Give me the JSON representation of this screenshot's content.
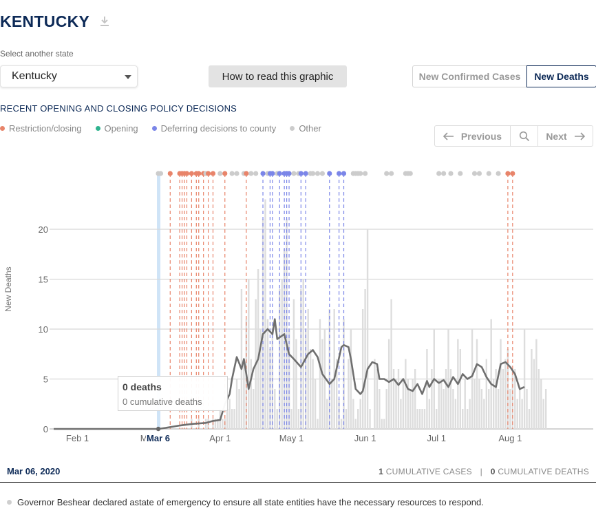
{
  "header": {
    "state_title": "KENTUCKY",
    "download_icon": "download-icon"
  },
  "selector": {
    "label": "Select another state",
    "value": "Kentucky"
  },
  "howto_label": "How to read this graphic",
  "toggle": {
    "cases_label": "New Confirmed Cases",
    "deaths_label": "New Deaths",
    "active": "deaths"
  },
  "policy": {
    "title": "RECENT OPENING AND CLOSING POLICY DECISIONS",
    "legend": [
      {
        "label": "Restriction/closing",
        "color": "#e8846a"
      },
      {
        "label": "Opening",
        "color": "#2fb38f"
      },
      {
        "label": "Deferring decisions to county",
        "color": "#7b86e8"
      },
      {
        "label": "Other",
        "color": "#cccccc"
      }
    ]
  },
  "pager": {
    "prev_label": "Previous",
    "next_label": "Next"
  },
  "tooltip": {
    "main": "0 deaths",
    "sub": "0 cumulative deaths"
  },
  "footer": {
    "date": "Mar 06, 2020",
    "cum_cases_num": "1",
    "cum_cases_label": "CUMULATIVE CASES",
    "cum_deaths_num": "0",
    "cum_deaths_label": "CUMULATIVE DEATHS"
  },
  "event_text": "Governor Beshear declared astate of emergency to ensure all state entities have the necessary resources to respond.",
  "chart_data": {
    "type": "bar",
    "ylabel": "New Deaths",
    "ylim": [
      0,
      20
    ],
    "yticks": [
      0,
      5,
      10,
      15,
      20
    ],
    "start_date": "2020-01-22",
    "end_date": "2020-08-10",
    "xticks": [
      {
        "label": "Feb 1",
        "day": 10
      },
      {
        "label": "Ma",
        "day": 39
      },
      {
        "label": "Apr 1",
        "day": 70
      },
      {
        "label": "May 1",
        "day": 100
      },
      {
        "label": "Jun 1",
        "day": 131
      },
      {
        "label": "Jul 1",
        "day": 161
      },
      {
        "label": "Aug 1",
        "day": 192
      }
    ],
    "highlight": {
      "label": "Mar 6",
      "day": 44
    },
    "bars_start_day": 44,
    "daily_deaths": [
      0,
      0,
      0,
      0,
      0,
      0,
      0,
      0,
      0,
      0,
      0,
      0,
      0,
      0,
      1,
      0,
      0,
      1,
      0,
      0,
      1,
      1,
      0,
      1,
      1,
      1,
      2,
      1,
      1,
      2,
      3,
      2,
      2,
      5,
      4,
      14,
      7,
      11,
      15,
      7,
      4,
      13,
      16,
      10,
      21,
      23,
      11,
      8,
      10,
      4,
      2,
      14,
      15,
      18,
      21,
      10,
      2,
      13,
      9,
      2,
      14,
      15,
      10,
      12,
      8,
      7,
      5,
      1,
      11,
      9,
      10,
      3,
      12,
      5,
      12,
      7,
      3,
      1,
      11,
      2,
      7,
      10,
      3,
      1,
      2,
      3,
      12,
      14,
      20,
      2,
      0,
      7,
      6,
      4,
      1,
      1,
      4,
      9,
      13,
      6,
      5,
      6,
      3,
      5,
      7,
      5,
      4,
      5,
      6,
      2,
      2,
      2,
      2,
      8,
      3,
      6,
      10,
      2,
      5,
      5,
      4,
      6,
      10,
      6,
      4,
      3,
      9,
      8,
      2,
      5,
      2,
      3,
      10,
      5,
      9,
      5,
      4,
      3,
      7,
      4,
      11,
      5,
      6,
      4,
      9,
      6,
      7,
      8,
      4,
      6,
      6,
      3,
      4,
      3,
      10,
      4,
      2,
      8,
      7,
      9,
      6,
      5,
      3,
      4
    ],
    "avg_points": [
      [
        0,
        0
      ],
      [
        44,
        0
      ],
      [
        47,
        0.1
      ],
      [
        52,
        0.3
      ],
      [
        58,
        0.5
      ],
      [
        64,
        0.6
      ],
      [
        67,
        0.8
      ],
      [
        70,
        0.9
      ],
      [
        72,
        2.5
      ],
      [
        74,
        3.5
      ],
      [
        75,
        5
      ],
      [
        77,
        7.2
      ],
      [
        79,
        6
      ],
      [
        80,
        7
      ],
      [
        82,
        4
      ],
      [
        84,
        6
      ],
      [
        86,
        7
      ],
      [
        88,
        9.5
      ],
      [
        90,
        10
      ],
      [
        92,
        9.5
      ],
      [
        93,
        11
      ],
      [
        94,
        9
      ],
      [
        97,
        9.5
      ],
      [
        99,
        7.5
      ],
      [
        101,
        7
      ],
      [
        104,
        6.2
      ],
      [
        107,
        7.5
      ],
      [
        109,
        7.9
      ],
      [
        111,
        7.2
      ],
      [
        113,
        5.5
      ],
      [
        116,
        4.5
      ],
      [
        118,
        5
      ],
      [
        121,
        8.2
      ],
      [
        122,
        8.4
      ],
      [
        124,
        8.2
      ],
      [
        125,
        7
      ],
      [
        127,
        4
      ],
      [
        129,
        3.5
      ],
      [
        130,
        3.8
      ],
      [
        132,
        6
      ],
      [
        134,
        6.7
      ],
      [
        136,
        6.5
      ],
      [
        137,
        5
      ],
      [
        139,
        5
      ],
      [
        141,
        4.7
      ],
      [
        143,
        5
      ],
      [
        145,
        4.4
      ],
      [
        147,
        5
      ],
      [
        149,
        4
      ],
      [
        151,
        3.8
      ],
      [
        153,
        4.5
      ],
      [
        155,
        3.5
      ],
      [
        157,
        4.8
      ],
      [
        158,
        4.2
      ],
      [
        160,
        5
      ],
      [
        162,
        4.6
      ],
      [
        164,
        4.9
      ],
      [
        166,
        4.2
      ],
      [
        168,
        5.2
      ],
      [
        170,
        4.5
      ],
      [
        172,
        5.5
      ],
      [
        174,
        5
      ],
      [
        176,
        5.3
      ],
      [
        178,
        6.5
      ],
      [
        180,
        6.2
      ],
      [
        182,
        5.2
      ],
      [
        184,
        4.5
      ],
      [
        186,
        4.2
      ],
      [
        188,
        6.5
      ],
      [
        190,
        6.7
      ],
      [
        192,
        6.2
      ],
      [
        194,
        5.5
      ],
      [
        196,
        4
      ],
      [
        198,
        4.2
      ]
    ],
    "policy_markers": [
      {
        "day": 44,
        "type": "other"
      },
      {
        "day": 45,
        "type": "other"
      },
      {
        "day": 49,
        "type": "restriction"
      },
      {
        "day": 53,
        "type": "restriction"
      },
      {
        "day": 54,
        "type": "restriction"
      },
      {
        "day": 55,
        "type": "restriction"
      },
      {
        "day": 56,
        "type": "restriction"
      },
      {
        "day": 58,
        "type": "restriction"
      },
      {
        "day": 60,
        "type": "restriction"
      },
      {
        "day": 61,
        "type": "restriction"
      },
      {
        "day": 63,
        "type": "restriction"
      },
      {
        "day": 64,
        "type": "other"
      },
      {
        "day": 65,
        "type": "restriction"
      },
      {
        "day": 67,
        "type": "restriction"
      },
      {
        "day": 70,
        "type": "other"
      },
      {
        "day": 72,
        "type": "restriction"
      },
      {
        "day": 75,
        "type": "other"
      },
      {
        "day": 77,
        "type": "other"
      },
      {
        "day": 80,
        "type": "other"
      },
      {
        "day": 81,
        "type": "restriction"
      },
      {
        "day": 83,
        "type": "other"
      },
      {
        "day": 85,
        "type": "other"
      },
      {
        "day": 88,
        "type": "county"
      },
      {
        "day": 90,
        "type": "other"
      },
      {
        "day": 91,
        "type": "county"
      },
      {
        "day": 92,
        "type": "county"
      },
      {
        "day": 94,
        "type": "other"
      },
      {
        "day": 95,
        "type": "county"
      },
      {
        "day": 97,
        "type": "county"
      },
      {
        "day": 98,
        "type": "county"
      },
      {
        "day": 99,
        "type": "county"
      },
      {
        "day": 101,
        "type": "other"
      },
      {
        "day": 103,
        "type": "other"
      },
      {
        "day": 104,
        "type": "county"
      },
      {
        "day": 106,
        "type": "county"
      },
      {
        "day": 108,
        "type": "other"
      },
      {
        "day": 109,
        "type": "other"
      },
      {
        "day": 111,
        "type": "other"
      },
      {
        "day": 113,
        "type": "other"
      },
      {
        "day": 116,
        "type": "county"
      },
      {
        "day": 120,
        "type": "county"
      },
      {
        "day": 122,
        "type": "county"
      },
      {
        "day": 126,
        "type": "other"
      },
      {
        "day": 127,
        "type": "other"
      },
      {
        "day": 128,
        "type": "other"
      },
      {
        "day": 129,
        "type": "other"
      },
      {
        "day": 131,
        "type": "other"
      },
      {
        "day": 140,
        "type": "other"
      },
      {
        "day": 142,
        "type": "other"
      },
      {
        "day": 148,
        "type": "other"
      },
      {
        "day": 149,
        "type": "other"
      },
      {
        "day": 150,
        "type": "other"
      },
      {
        "day": 162,
        "type": "other"
      },
      {
        "day": 164,
        "type": "other"
      },
      {
        "day": 167,
        "type": "other"
      },
      {
        "day": 171,
        "type": "other"
      },
      {
        "day": 177,
        "type": "other"
      },
      {
        "day": 179,
        "type": "other"
      },
      {
        "day": 183,
        "type": "other"
      },
      {
        "day": 187,
        "type": "other"
      },
      {
        "day": 191,
        "type": "restriction"
      },
      {
        "day": 193,
        "type": "restriction"
      }
    ],
    "colors": {
      "restriction": "#e8846a",
      "county": "#7b86e8",
      "other": "#cccccc",
      "bar": "#dddddd",
      "line": "#6f6f6f",
      "highlight": "#cfe4f7"
    }
  }
}
